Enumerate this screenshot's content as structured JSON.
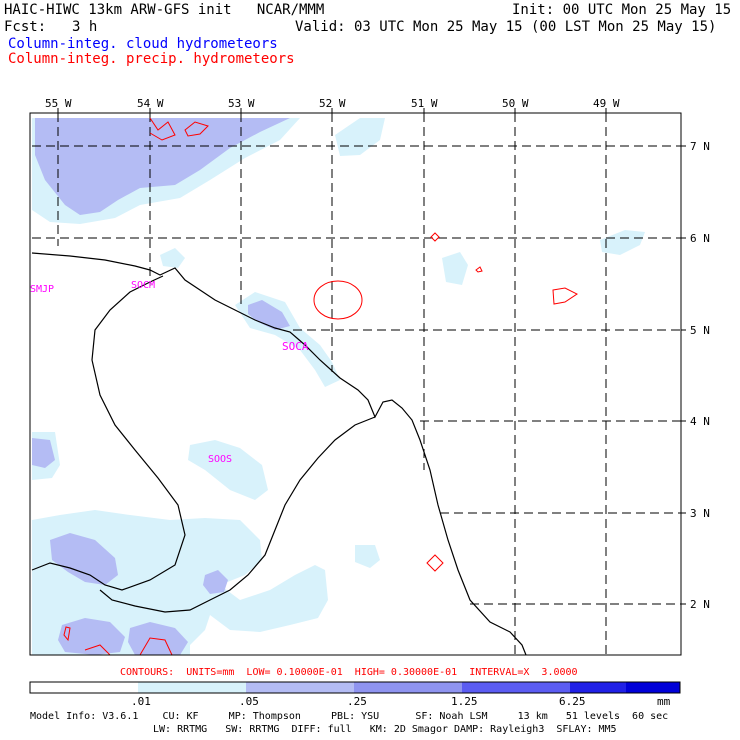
{
  "header": {
    "title": "HAIC-HIWC 13km ARW-GFS init   NCAR/MMM",
    "fcst_label": "Fcst:",
    "fcst_value": "3 h",
    "init": "Init: 00 UTC Mon 25 May 15",
    "valid": "Valid: 03 UTC Mon 25 May 15 (00 LST Mon 25 May 15)",
    "field_cloud": "Column-integ. cloud hydrometeors",
    "field_precip": "Column-integ. precip. hydrometeors"
  },
  "map": {
    "longitude_labels": [
      "55 W",
      "54 W",
      "53 W",
      "52 W",
      "51 W",
      "50 W",
      "49 W"
    ],
    "latitude_labels": [
      "7 N",
      "6 N",
      "5 N",
      "4 N",
      "3 N",
      "2 N"
    ],
    "stations": [
      "SMJP",
      "SOCM",
      "SOCA",
      "SOOS"
    ]
  },
  "contours_note": "CONTOURS:  UNITS=mm  LOW= 0.10000E-01  HIGH= 0.30000E-01  INTERVAL=X  3.0000",
  "colorbar": {
    "labels": [
      ".01",
      ".05",
      ".25",
      "1.25",
      "6.25"
    ],
    "units": "mm",
    "colors": [
      "#ffffff",
      "#d8f2fb",
      "#b4bcf4",
      "#8f94f0",
      "#5b5cf2",
      "#2020e6",
      "#0000d8"
    ]
  },
  "footer": {
    "line1": "Model Info: V3.6.1    CU: KF     MP: Thompson     PBL: YSU      SF: Noah LSM     13 km   51 levels  60 sec",
    "line2": "LW: RRTMG   SW: RRTMG  DIFF: full   KM: 2D Smagor DAMP: Rayleigh3  SFLAY: MM5"
  },
  "colors": {
    "cloud_light": "#d8f2fb",
    "cloud_medium": "#b4bcf4",
    "precip_contour": "#ff0000",
    "station_label": "#ff00ff"
  }
}
